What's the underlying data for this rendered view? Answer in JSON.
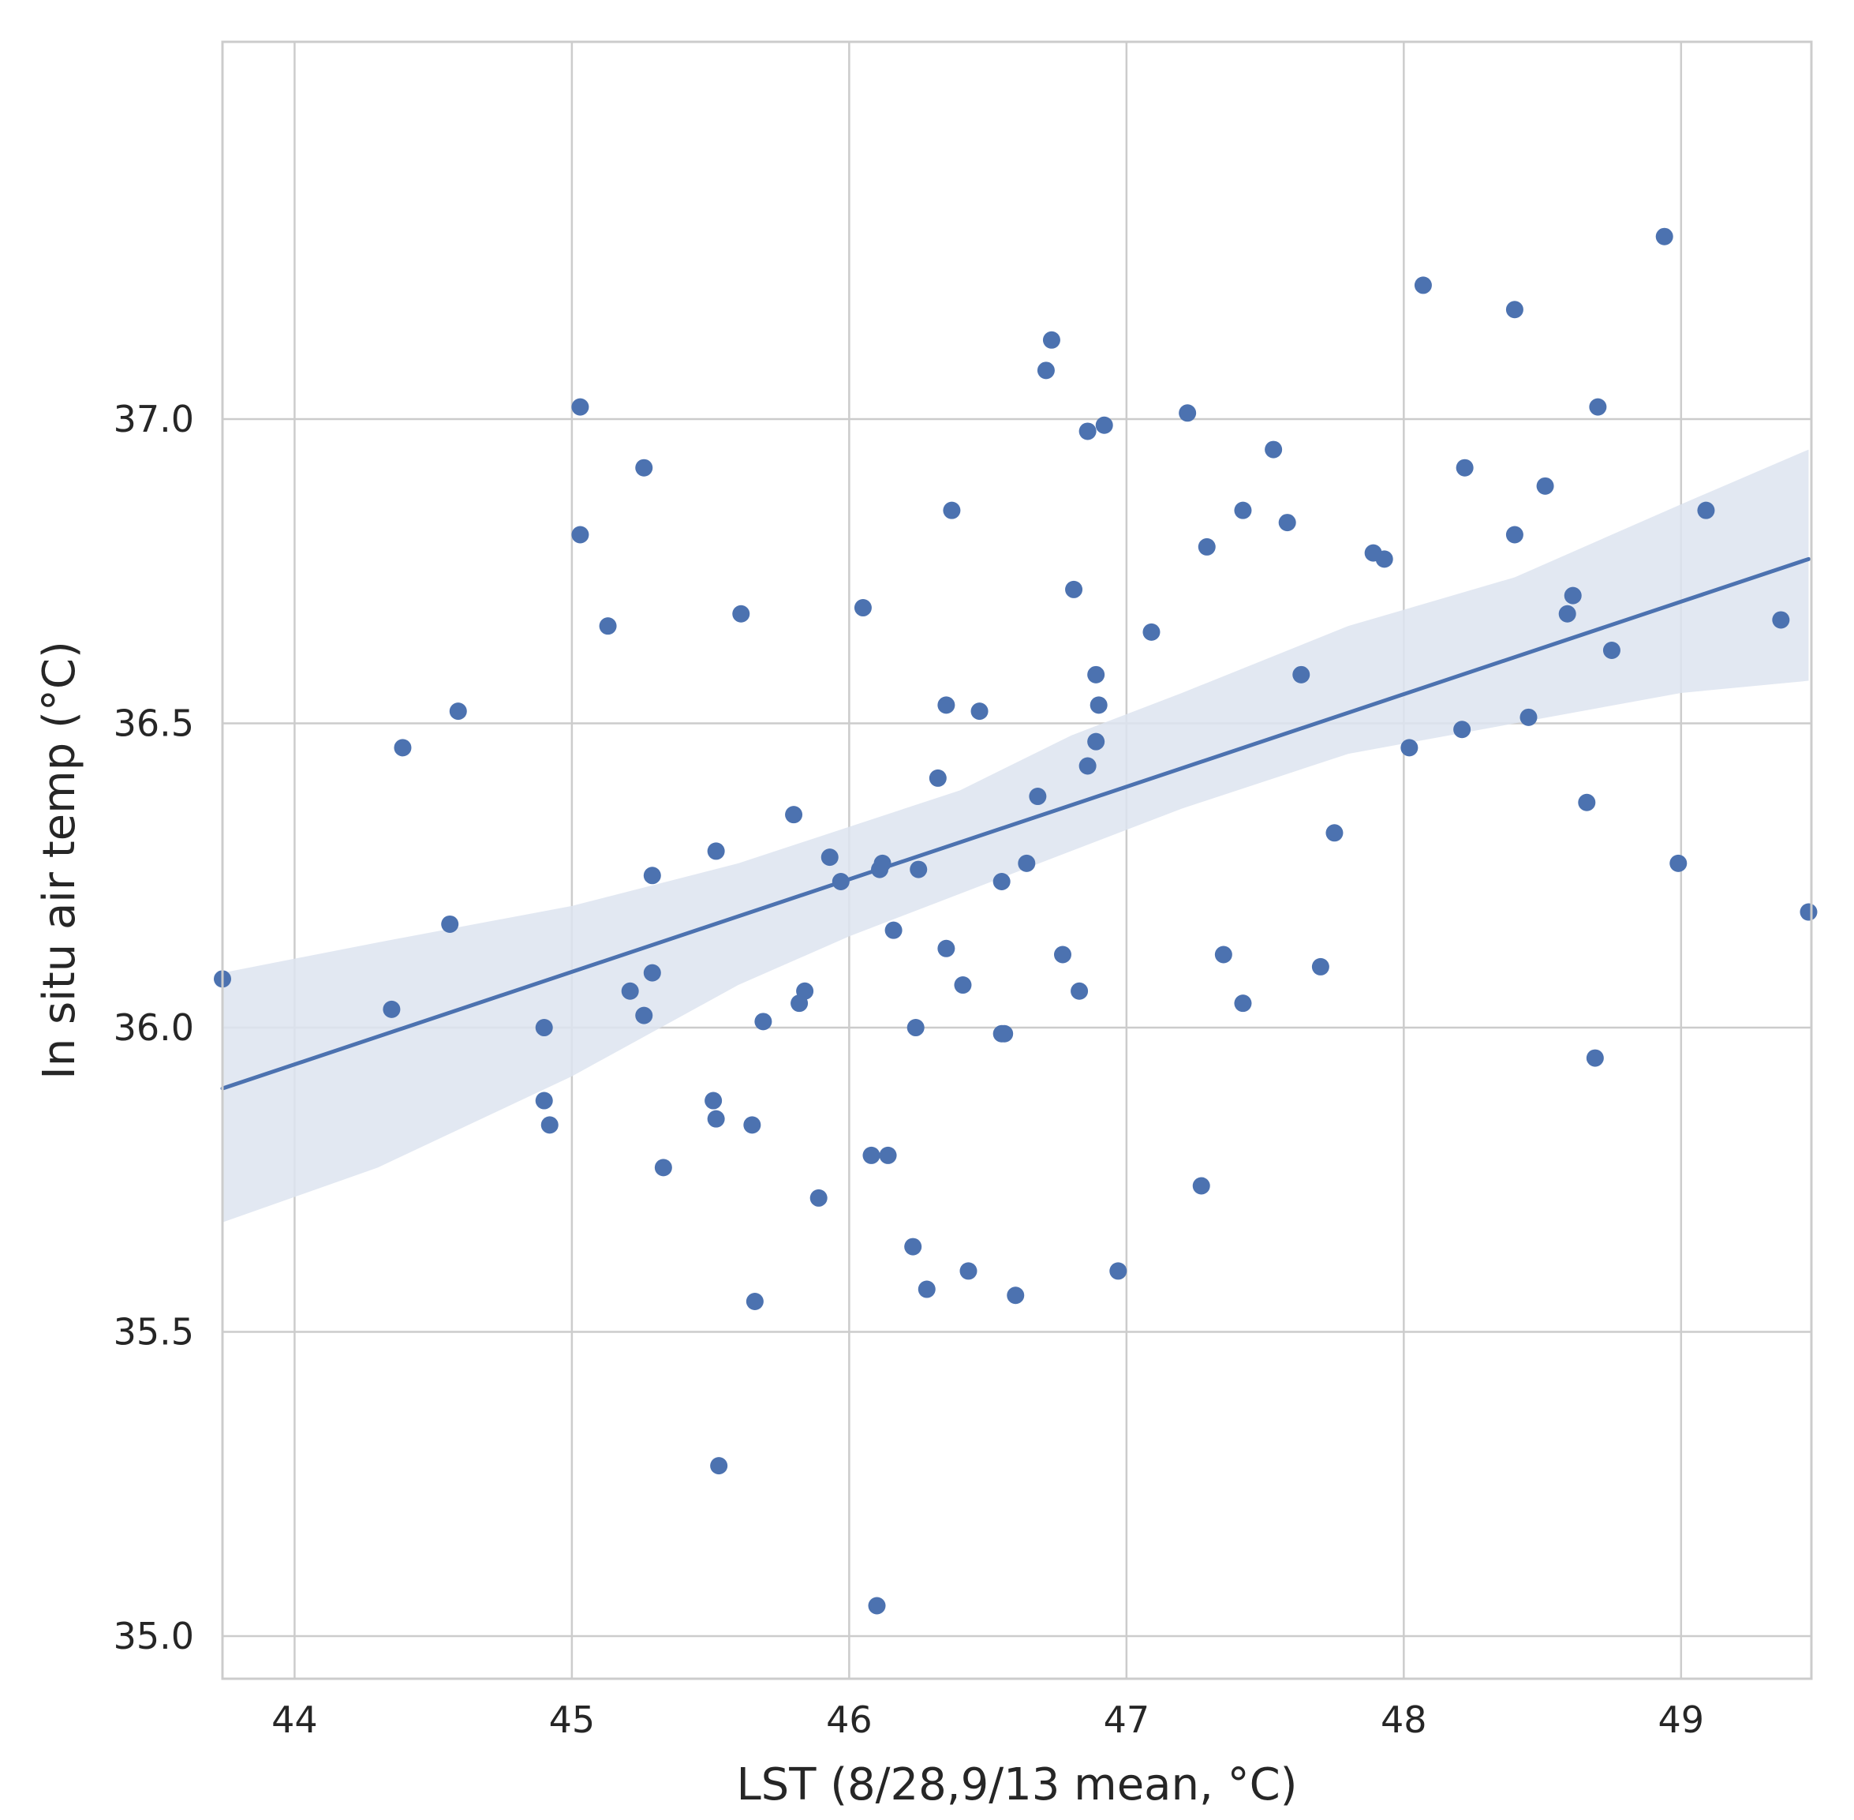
{
  "chart_data": {
    "type": "scatter",
    "title": "",
    "xlabel": "LST (8/28,9/13 mean, °C)",
    "ylabel": "In situ air temp (°C)",
    "xlim": [
      43.74,
      49.47
    ],
    "ylim": [
      34.93,
      37.62
    ],
    "xticks": [
      44,
      45,
      46,
      47,
      48,
      49
    ],
    "xtick_labels": [
      "44",
      "45",
      "46",
      "47",
      "48",
      "49"
    ],
    "yticks": [
      35.0,
      35.5,
      36.0,
      36.5,
      37.0
    ],
    "ytick_labels": [
      "35.0",
      "35.5",
      "36.0",
      "36.5",
      "37.0"
    ],
    "grid": true,
    "point_color": "#4c72b0",
    "band_color": "#dde4f0",
    "series": [
      {
        "name": "observations",
        "points": [
          [
            43.74,
            36.08
          ],
          [
            44.35,
            36.03
          ],
          [
            44.39,
            36.46
          ],
          [
            44.56,
            36.17
          ],
          [
            44.59,
            36.52
          ],
          [
            44.9,
            36.0
          ],
          [
            44.9,
            35.88
          ],
          [
            44.92,
            35.84
          ],
          [
            45.03,
            37.02
          ],
          [
            45.03,
            36.81
          ],
          [
            45.13,
            36.66
          ],
          [
            45.21,
            36.06
          ],
          [
            45.26,
            36.92
          ],
          [
            45.26,
            36.02
          ],
          [
            45.29,
            36.25
          ],
          [
            45.29,
            36.09
          ],
          [
            45.33,
            35.77
          ],
          [
            45.51,
            35.88
          ],
          [
            45.52,
            36.29
          ],
          [
            45.52,
            35.85
          ],
          [
            45.53,
            35.28
          ],
          [
            45.61,
            36.68
          ],
          [
            45.65,
            35.84
          ],
          [
            45.66,
            35.55
          ],
          [
            45.69,
            36.01
          ],
          [
            45.8,
            36.35
          ],
          [
            45.82,
            36.04
          ],
          [
            45.84,
            36.06
          ],
          [
            45.89,
            35.72
          ],
          [
            45.93,
            36.28
          ],
          [
            45.97,
            36.24
          ],
          [
            46.05,
            36.69
          ],
          [
            46.08,
            35.79
          ],
          [
            46.1,
            35.05
          ],
          [
            46.11,
            36.26
          ],
          [
            46.12,
            36.27
          ],
          [
            46.14,
            35.79
          ],
          [
            46.16,
            36.16
          ],
          [
            46.23,
            35.64
          ],
          [
            46.24,
            36.0
          ],
          [
            46.25,
            36.26
          ],
          [
            46.28,
            35.57
          ],
          [
            46.32,
            36.41
          ],
          [
            46.35,
            36.53
          ],
          [
            46.35,
            36.13
          ],
          [
            46.37,
            36.85
          ],
          [
            46.41,
            36.07
          ],
          [
            46.43,
            35.6
          ],
          [
            46.47,
            36.52
          ],
          [
            46.55,
            36.24
          ],
          [
            46.55,
            35.99
          ],
          [
            46.56,
            35.99
          ],
          [
            46.6,
            35.56
          ],
          [
            46.64,
            36.27
          ],
          [
            46.68,
            36.38
          ],
          [
            46.71,
            37.08
          ],
          [
            46.73,
            37.13
          ],
          [
            46.77,
            36.12
          ],
          [
            46.81,
            36.72
          ],
          [
            46.83,
            36.06
          ],
          [
            46.86,
            36.98
          ],
          [
            46.86,
            36.43
          ],
          [
            46.89,
            36.58
          ],
          [
            46.89,
            36.47
          ],
          [
            46.9,
            36.53
          ],
          [
            46.92,
            36.99
          ],
          [
            46.97,
            35.6
          ],
          [
            47.09,
            36.65
          ],
          [
            47.22,
            37.01
          ],
          [
            47.27,
            35.74
          ],
          [
            47.29,
            36.79
          ],
          [
            47.35,
            36.12
          ],
          [
            47.42,
            36.85
          ],
          [
            47.42,
            36.04
          ],
          [
            47.53,
            36.95
          ],
          [
            47.58,
            36.83
          ],
          [
            47.63,
            36.58
          ],
          [
            47.7,
            36.1
          ],
          [
            47.75,
            36.32
          ],
          [
            47.89,
            36.78
          ],
          [
            47.93,
            36.77
          ],
          [
            48.02,
            36.46
          ],
          [
            48.07,
            37.22
          ],
          [
            48.21,
            36.49
          ],
          [
            48.22,
            36.92
          ],
          [
            48.4,
            37.18
          ],
          [
            48.4,
            36.81
          ],
          [
            48.45,
            36.51
          ],
          [
            48.51,
            36.89
          ],
          [
            48.59,
            36.68
          ],
          [
            48.61,
            36.71
          ],
          [
            48.66,
            36.37
          ],
          [
            48.69,
            35.95
          ],
          [
            48.7,
            37.02
          ],
          [
            48.75,
            36.62
          ],
          [
            48.94,
            37.3
          ],
          [
            48.99,
            36.27
          ],
          [
            49.09,
            36.85
          ],
          [
            49.36,
            36.67
          ],
          [
            49.46,
            36.19
          ]
        ]
      }
    ],
    "regression_line": {
      "x": [
        43.74,
        49.46
      ],
      "y": [
        35.9,
        36.77
      ]
    },
    "confidence_band": {
      "x": [
        43.74,
        44.3,
        45.0,
        45.6,
        46.0,
        46.4,
        46.8,
        47.2,
        47.8,
        48.4,
        49.0,
        49.46
      ],
      "upper": [
        36.09,
        36.14,
        36.2,
        36.27,
        36.33,
        36.39,
        36.48,
        36.55,
        36.66,
        36.74,
        36.86,
        36.95
      ],
      "lower": [
        35.68,
        35.77,
        35.92,
        36.07,
        36.15,
        36.22,
        36.29,
        36.36,
        36.45,
        36.5,
        36.55,
        36.57
      ]
    }
  }
}
